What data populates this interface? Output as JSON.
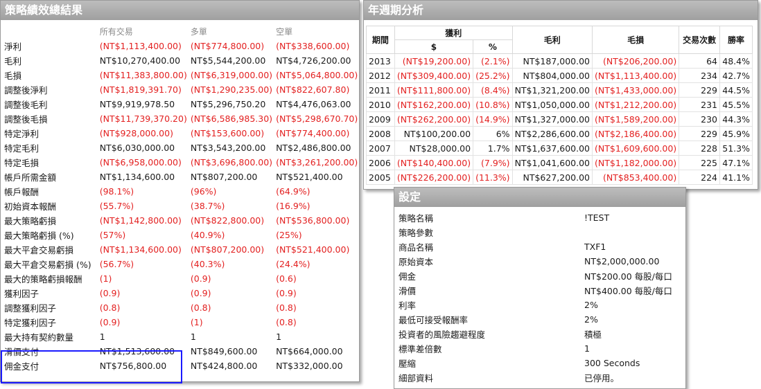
{
  "summary": {
    "title": "策略績效總結果",
    "headers": [
      "所有交易",
      "多單",
      "空單"
    ],
    "rows": [
      {
        "label": "淨利",
        "all": "(NT$1,113,400.00)",
        "long": "(NT$774,800.00)",
        "short": "(NT$338,600.00)"
      },
      {
        "label": "毛利",
        "all": "NT$10,270,400.00",
        "long": "NT$5,544,200.00",
        "short": "NT$4,726,200.00"
      },
      {
        "label": "毛損",
        "all": "(NT$11,383,800.00)",
        "long": "(NT$6,319,000.00)",
        "short": "(NT$5,064,800.00)"
      },
      {
        "label": "調整後淨利",
        "all": "(NT$1,819,391.70)",
        "long": "(NT$1,290,235.00)",
        "short": "(NT$822,607.80)"
      },
      {
        "label": "調整後毛利",
        "all": "NT$9,919,978.50",
        "long": "NT$5,296,750.20",
        "short": "NT$4,476,063.00"
      },
      {
        "label": "調整後毛損",
        "all": "(NT$11,739,370.20)",
        "long": "(NT$6,586,985.30)",
        "short": "(NT$5,298,670.70)"
      },
      {
        "label": "特定淨利",
        "all": "(NT$928,000.00)",
        "long": "(NT$153,600.00)",
        "short": "(NT$774,400.00)"
      },
      {
        "label": "特定毛利",
        "all": "NT$6,030,000.00",
        "long": "NT$3,543,200.00",
        "short": "NT$2,486,800.00"
      },
      {
        "label": "特定毛損",
        "all": "(NT$6,958,000.00)",
        "long": "(NT$3,696,800.00)",
        "short": "(NT$3,261,200.00)"
      },
      {
        "label": "帳戶所需金額",
        "all": "NT$1,134,600.00",
        "long": "NT$807,200.00",
        "short": "NT$521,400.00"
      },
      {
        "label": "帳戶報酬",
        "all": "(98.1%)",
        "long": "(96%)",
        "short": "(64.9%)"
      },
      {
        "label": "初始資本報酬",
        "all": "(55.7%)",
        "long": "(38.7%)",
        "short": "(16.9%)"
      },
      {
        "label": "最大策略虧損",
        "all": "(NT$1,142,800.00)",
        "long": "(NT$822,800.00)",
        "short": "(NT$536,800.00)"
      },
      {
        "label": "最大策略虧損 (%)",
        "all": "(57%)",
        "long": "(40.9%)",
        "short": "(25%)"
      },
      {
        "label": "最大平倉交易虧損",
        "all": "(NT$1,134,600.00)",
        "long": "(NT$807,200.00)",
        "short": "(NT$521,400.00)"
      },
      {
        "label": "最大平倉交易虧損 (%)",
        "all": "(56.7%)",
        "long": "(40.3%)",
        "short": "(24.4%)"
      },
      {
        "label": "最大的策略虧損報酬",
        "all": "(1)",
        "long": "(0.9)",
        "short": "(0.6)"
      },
      {
        "label": "獲利因子",
        "all": "(0.9)",
        "long": "(0.9)",
        "short": "(0.9)"
      },
      {
        "label": "調整獲利因子",
        "all": "(0.8)",
        "long": "(0.8)",
        "short": "(0.8)"
      },
      {
        "label": "特定獲利因子",
        "all": "(0.9)",
        "long": "(1)",
        "short": "(0.8)"
      },
      {
        "label": "最大持有契約數量",
        "all": "1",
        "long": "1",
        "short": "1"
      },
      {
        "label": "滑價支付",
        "all": "NT$1,513,600.00",
        "long": "NT$849,600.00",
        "short": "NT$664,000.00"
      },
      {
        "label": "佣金支付",
        "all": "NT$756,800.00",
        "long": "NT$424,800.00",
        "short": "NT$332,000.00"
      }
    ]
  },
  "annual": {
    "title": "年週期分析",
    "headers": {
      "period": "期間",
      "profit": "獲利",
      "dollar": "$",
      "percent": "%",
      "gross_profit": "毛利",
      "gross_loss": "毛損",
      "trades": "交易次數",
      "win_rate": "勝率"
    },
    "rows": [
      {
        "year": "2013",
        "profit": "(NT$19,200.00)",
        "pct": "(2.1%)",
        "gp": "NT$187,000.00",
        "gl": "(NT$206,200.00)",
        "trades": "64",
        "win": "48.4%"
      },
      {
        "year": "2012",
        "profit": "(NT$309,400.00)",
        "pct": "(25.2%)",
        "gp": "NT$804,000.00",
        "gl": "(NT$1,113,400.00)",
        "trades": "234",
        "win": "42.7%"
      },
      {
        "year": "2011",
        "profit": "(NT$111,800.00)",
        "pct": "(8.4%)",
        "gp": "NT$1,321,200.00",
        "gl": "(NT$1,433,000.00)",
        "trades": "229",
        "win": "44.5%"
      },
      {
        "year": "2010",
        "profit": "(NT$162,200.00)",
        "pct": "(10.8%)",
        "gp": "NT$1,050,000.00",
        "gl": "(NT$1,212,200.00)",
        "trades": "231",
        "win": "45.5%"
      },
      {
        "year": "2009",
        "profit": "(NT$262,200.00)",
        "pct": "(14.9%)",
        "gp": "NT$1,327,000.00",
        "gl": "(NT$1,589,200.00)",
        "trades": "230",
        "win": "44.3%"
      },
      {
        "year": "2008",
        "profit": "NT$100,200.00",
        "pct": "6%",
        "gp": "NT$2,286,600.00",
        "gl": "(NT$2,186,400.00)",
        "trades": "229",
        "win": "45.9%"
      },
      {
        "year": "2007",
        "profit": "NT$28,000.00",
        "pct": "1.7%",
        "gp": "NT$1,637,600.00",
        "gl": "(NT$1,609,600.00)",
        "trades": "228",
        "win": "51.3%"
      },
      {
        "year": "2006",
        "profit": "(NT$140,400.00)",
        "pct": "(7.9%)",
        "gp": "NT$1,041,600.00",
        "gl": "(NT$1,182,000.00)",
        "trades": "225",
        "win": "47.1%"
      },
      {
        "year": "2005",
        "profit": "(NT$226,200.00)",
        "pct": "(11.3%)",
        "gp": "NT$627,200.00",
        "gl": "(NT$853,400.00)",
        "trades": "224",
        "win": "41.1%"
      }
    ]
  },
  "settings": {
    "title": "設定",
    "rows": [
      {
        "key": "策略名稱",
        "value": "!TEST"
      },
      {
        "key": "策略參數",
        "value": ""
      },
      {
        "key": "商品名稱",
        "value": "TXF1"
      },
      {
        "key": "原始資本",
        "value": "NT$2,000,000.00"
      },
      {
        "key": "佣金",
        "value": "NT$200.00 每股/每口"
      },
      {
        "key": "滑價",
        "value": "NT$400.00 每股/每口"
      },
      {
        "key": "利率",
        "value": "2%"
      },
      {
        "key": "最低可接受報酬率",
        "value": "2%"
      },
      {
        "key": "投資者的風險趨避程度",
        "value": "積極"
      },
      {
        "key": "標準差倍數",
        "value": "1"
      },
      {
        "key": "壓縮",
        "value": "300 Seconds"
      },
      {
        "key": "細部資料",
        "value": "已停用。"
      }
    ]
  },
  "colors": {
    "negative": "#e32020",
    "highlight_border": "#1a1aff",
    "title_bar": "#a8a8a8"
  }
}
